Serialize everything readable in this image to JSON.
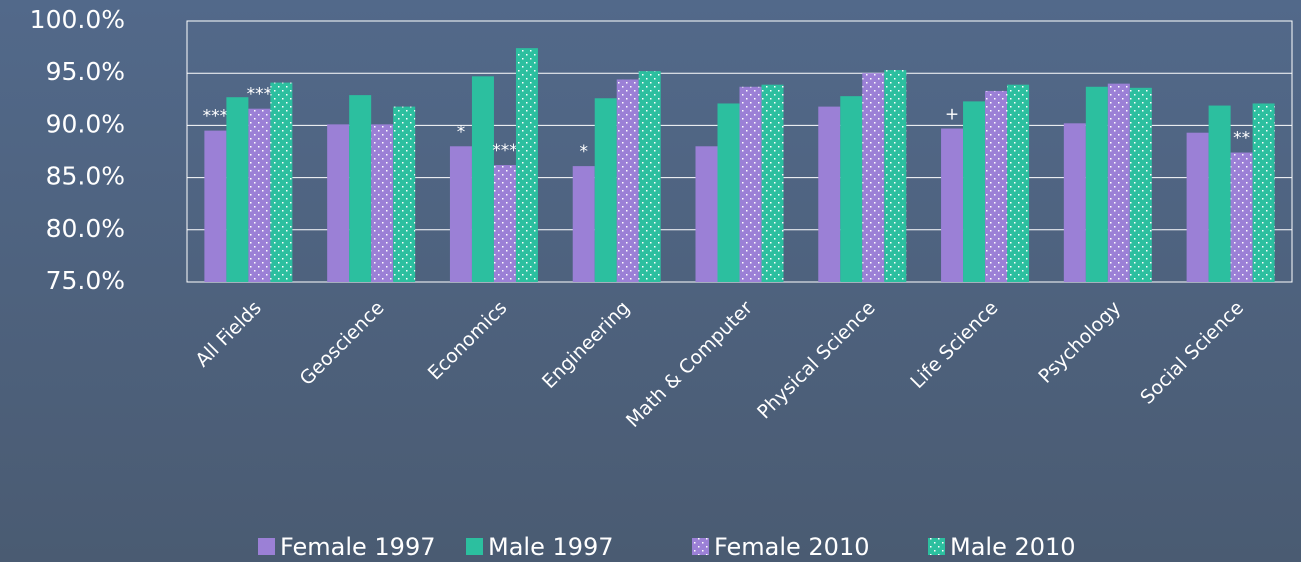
{
  "chart_data": {
    "type": "bar",
    "categories": [
      "All Fields",
      "Geoscience",
      "Economics",
      "Engineering",
      "Math & Computer",
      "Physical Science",
      "Life Science",
      "Psychology",
      "Social Science"
    ],
    "series": [
      {
        "name": "Female 1997",
        "color": "#9b80d6",
        "values": [
          89.5,
          90.1,
          88.0,
          86.1,
          88.0,
          91.8,
          89.7,
          90.2,
          89.3
        ],
        "markers": [
          "***",
          null,
          "*",
          "*",
          null,
          null,
          "+",
          null,
          null
        ]
      },
      {
        "name": "Male 1997",
        "color": "#2cbf9f",
        "values": [
          92.7,
          92.9,
          94.7,
          92.6,
          92.1,
          92.8,
          92.3,
          93.7,
          91.9
        ]
      },
      {
        "name": "Female 2010",
        "color": "#9b80d6",
        "pattern": "dots",
        "values": [
          91.6,
          90.1,
          86.2,
          94.4,
          93.7,
          95.0,
          93.3,
          94.0,
          87.4
        ],
        "markers": [
          "***",
          null,
          "***",
          null,
          null,
          null,
          null,
          null,
          "**"
        ]
      },
      {
        "name": "Male 2010",
        "color": "#2cbf9f",
        "pattern": "dots",
        "values": [
          94.1,
          91.8,
          97.4,
          95.2,
          93.9,
          95.3,
          93.9,
          93.6,
          92.1
        ]
      }
    ],
    "ylim": [
      75,
      100
    ],
    "yticks": [
      {
        "value": 75,
        "label": "75.0%"
      },
      {
        "value": 80,
        "label": "80.0%"
      },
      {
        "value": 85,
        "label": "85.0%"
      },
      {
        "value": 90,
        "label": "90.0%"
      },
      {
        "value": 95,
        "label": "95.0%"
      },
      {
        "value": 100,
        "label": "100.0%"
      }
    ],
    "grid": true,
    "legend": "bottom"
  }
}
